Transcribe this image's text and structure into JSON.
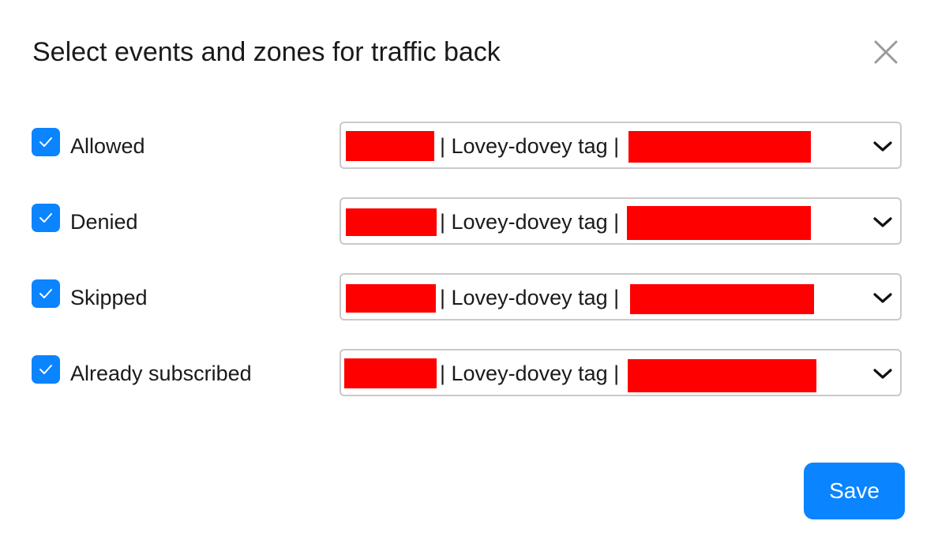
{
  "dialog": {
    "title": "Select events and zones for traffic back",
    "close_icon": "close-icon"
  },
  "rows": [
    {
      "label": "Allowed",
      "checked": true,
      "select_value": "| Lovey-dovey tag |"
    },
    {
      "label": "Denied",
      "checked": true,
      "select_value": "| Lovey-dovey tag |"
    },
    {
      "label": "Skipped",
      "checked": true,
      "select_value": "| Lovey-dovey tag |"
    },
    {
      "label": "Already subscribed",
      "checked": true,
      "select_value": "| Lovey-dovey tag |"
    }
  ],
  "footer": {
    "save_label": "Save"
  },
  "colors": {
    "accent": "#0a84ff",
    "redaction": "#ff0000",
    "border": "#c9c9c9"
  }
}
